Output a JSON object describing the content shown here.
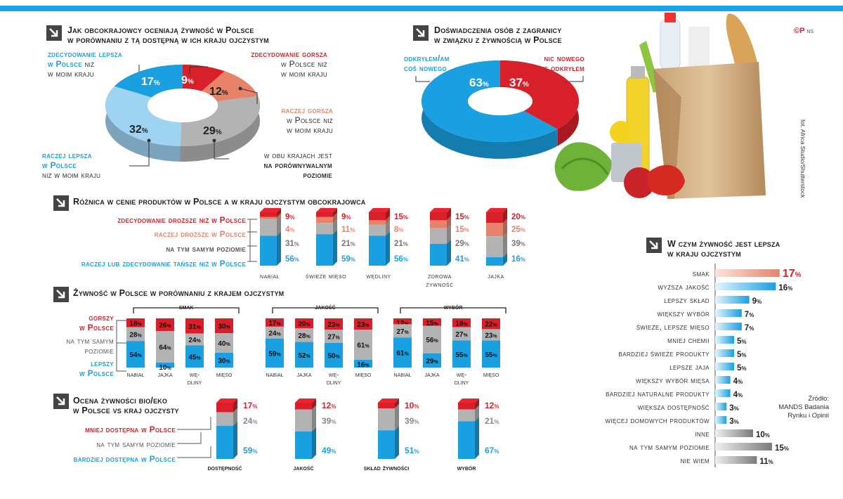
{
  "logo": {
    "mark": "©P",
    "suffix": "NS"
  },
  "photo_credit": "fot. Africa Studio/Shutterstock",
  "source": {
    "line1": "Źródło:",
    "line2": "MANDS Badania",
    "line3": "Rynku i Opinii"
  },
  "colors": {
    "red": "#d8202a",
    "salmon": "#e8826a",
    "gray": "#b3b3b3",
    "lightblue": "#9fd3f2",
    "blue": "#1a9fe0"
  },
  "chart_data": [
    {
      "id": "ocena",
      "type": "pie",
      "title": "Jak obcokrajowcy oceniają żywność w Polsce w porównaniu z tą dostępną w ich kraju ojczystym",
      "title_line1": "Jak obcokrajowcy oceniają żywność w Polsce",
      "title_line2": "w porównaniu z tą dostępną w ich kraju ojczystym",
      "slices": [
        {
          "label": "zdecydowanie gorsza w Polsce niż w moim kraju",
          "value": 9
        },
        {
          "label": "raczej gorsza w Polsce niż w moim kraju",
          "value": 12
        },
        {
          "label": "w obu krajach jest na porównywalnym poziomie",
          "value": 29
        },
        {
          "label": "raczej lepsza w Polsce niż w moim kraju",
          "value": 32
        },
        {
          "label": "zdecydowanie lepsza w Polsce niż w moim kraju",
          "value": 17
        }
      ],
      "labels": {
        "zg_1": "zdecydowanie gorsza",
        "zg_2": "w Polsce niż",
        "zg_3": "w moim kraju",
        "rg_1": "raczej gorsza",
        "rg_2": "w Polsce niż",
        "rg_3": "w moim kraju",
        "por_1": "w obu krajach jest",
        "por_2": "na porównywalnym",
        "por_3": "poziomie",
        "rl_1": "raczej lepsza",
        "rl_2": "w Polsce",
        "rl_3": "niż w moim kraju",
        "zl_1": "zdecydowanie lepsza",
        "zl_2": "w Polsce",
        "zl_2b": "niż",
        "zl_3": "w moim kraju"
      }
    },
    {
      "id": "doswiadczenia",
      "type": "pie",
      "title_line1": "Doświadczenia osób z zagranicy",
      "title_line2": "w związku z żywnością w Polsce",
      "slices": [
        {
          "label": "nic nowego nie odkryłem",
          "value": 37
        },
        {
          "label": "odkryłem/am coś nowego",
          "value": 63
        }
      ],
      "labels": {
        "new_1": "odkryłem/am",
        "new_2": "coś nowego",
        "nothing_1": "nic nowego",
        "nothing_2": "nie odkryłem"
      }
    },
    {
      "id": "roznica",
      "type": "bar",
      "title": "Różnica w cenie produktów w Polsce a w kraju ojczystym obcokrajowca",
      "categories": [
        "nabiał",
        "świeże mięso",
        "wędliny",
        "zdrowa żywność",
        "jajka"
      ],
      "category_lines": [
        [
          "nabiał"
        ],
        [
          "świeże mięso"
        ],
        [
          "wędliny"
        ],
        [
          "zdrowa",
          "żywność"
        ],
        [
          "jajka"
        ]
      ],
      "series": [
        {
          "name": "zdecydowanie droższe niż w Polsce",
          "values": [
            9,
            9,
            15,
            15,
            20
          ]
        },
        {
          "name": "raczej droższe w Polsce",
          "values": [
            4,
            11,
            8,
            15,
            25
          ]
        },
        {
          "name": "na tym samym poziomie",
          "values": [
            31,
            21,
            21,
            29,
            39
          ]
        },
        {
          "name": "raczej lub zdecydowanie tańsze niż w Polsce",
          "values": [
            56,
            59,
            56,
            41,
            16
          ]
        }
      ]
    },
    {
      "id": "zywnosc",
      "type": "bar",
      "title": "Żywność w Polsce w porównaniu z krajem ojczystym",
      "legend": {
        "worse_1": "gorszy",
        "worse_2": "w Polsce",
        "same_1": "na tym samym",
        "same_2": "poziomie",
        "better_1": "lepszy",
        "better_2": "w Polsce"
      },
      "groups": [
        {
          "name": "smak",
          "categories": [
            [
              "nabiał"
            ],
            [
              "jajka"
            ],
            [
              "wę-",
              "dliny"
            ],
            [
              "mięso"
            ]
          ],
          "series": [
            {
              "name": "gorszy w Polsce",
              "values": [
                18,
                26,
                31,
                30
              ]
            },
            {
              "name": "na tym samym poziomie",
              "values": [
                28,
                64,
                24,
                40
              ]
            },
            {
              "name": "lepszy w Polsce",
              "values": [
                54,
                10,
                45,
                30
              ]
            }
          ]
        },
        {
          "name": "jakość",
          "categories": [
            [
              "nabiał"
            ],
            [
              "jajka"
            ],
            [
              "wę-",
              "dliny"
            ],
            [
              "mięso"
            ]
          ],
          "series": [
            {
              "name": "gorszy w Polsce",
              "values": [
                17,
                20,
                23,
                23
              ]
            },
            {
              "name": "na tym samym poziomie",
              "values": [
                24,
                28,
                27,
                61
              ]
            },
            {
              "name": "lepszy w Polsce",
              "values": [
                59,
                52,
                50,
                16
              ]
            }
          ]
        },
        {
          "name": "wybór",
          "categories": [
            [
              "nabiał"
            ],
            [
              "jajka"
            ],
            [
              "wę-",
              "dliny"
            ],
            [
              "mięso"
            ]
          ],
          "series": [
            {
              "name": "gorszy w Polsce",
              "values": [
                12,
                15,
                18,
                22
              ]
            },
            {
              "name": "na tym samym poziomie",
              "values": [
                27,
                56,
                27,
                23
              ]
            },
            {
              "name": "lepszy w Polsce",
              "values": [
                61,
                29,
                55,
                55
              ]
            }
          ]
        }
      ]
    },
    {
      "id": "bioeko",
      "type": "bar",
      "title_line1": "Ocena żywności bio/eko",
      "title_line2": "w Polsce vs kraj ojczysty",
      "categories": [
        "dostępność",
        "jakość",
        "skład żywności",
        "wybór"
      ],
      "series": [
        {
          "name": "mniej dostępna w Polsce",
          "values": [
            17,
            12,
            10,
            12
          ]
        },
        {
          "name": "na tym samym poziomie",
          "values": [
            24,
            39,
            39,
            21
          ]
        },
        {
          "name": "bardziej dostępna w Polsce",
          "values": [
            59,
            49,
            51,
            67
          ]
        }
      ]
    },
    {
      "id": "lepsza",
      "type": "bar",
      "orientation": "horizontal",
      "title_line1": "W czym żywność jest lepsza",
      "title_line2": "w kraju ojczystym",
      "categories": [
        "smak",
        "wyższa jakość",
        "lepszy skład",
        "większy wybór",
        "świeże, lepsze mięso",
        "mniej chemii",
        "bardziej świeże produkty",
        "lepsze jaja",
        "większy wybór mięsa",
        "bardziej naturalne produkty",
        "większa dostępność",
        "więcej domowych produktów",
        "inne",
        "na tym samym poziomie",
        "nie wiem"
      ],
      "values": [
        17,
        16,
        9,
        7,
        7,
        5,
        5,
        5,
        4,
        4,
        3,
        3,
        10,
        15,
        11
      ]
    }
  ]
}
